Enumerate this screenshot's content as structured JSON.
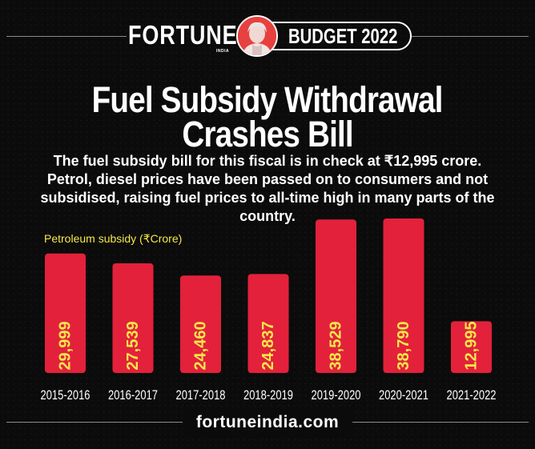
{
  "header": {
    "brand": "FORTUNE",
    "brand_sub": "INDIA",
    "badge": "BUDGET 2022"
  },
  "title_line1": "Fuel Subsidy Withdrawal",
  "title_line2": "Crashes Bill",
  "subtitle": "The fuel subsidy bill for this fiscal is in check at ₹12,995 crore. Petrol, diesel prices have been passed on to consumers and not subsidised, raising fuel prices to all-time high in many parts of the country.",
  "footer": "fortuneindia.com",
  "colors": {
    "bar": "#e3213b",
    "value_label": "#f4e84a",
    "background": "#0b0b0b"
  },
  "chart_data": {
    "type": "bar",
    "ylabel": "Petroleum subsidy (₹Crore)",
    "categories": [
      "2015-2016",
      "2016-2017",
      "2017-2018",
      "2018-2019",
      "2019-2020",
      "2020-2021",
      "2021-2022"
    ],
    "values": [
      29999,
      27539,
      24460,
      24837,
      38529,
      38790,
      12995
    ],
    "value_labels": [
      "29,999",
      "27,539",
      "24,460",
      "24,837",
      "38,529",
      "38,790",
      "12,995"
    ],
    "ylim": [
      0,
      41000
    ],
    "grid": false,
    "legend": "none"
  }
}
